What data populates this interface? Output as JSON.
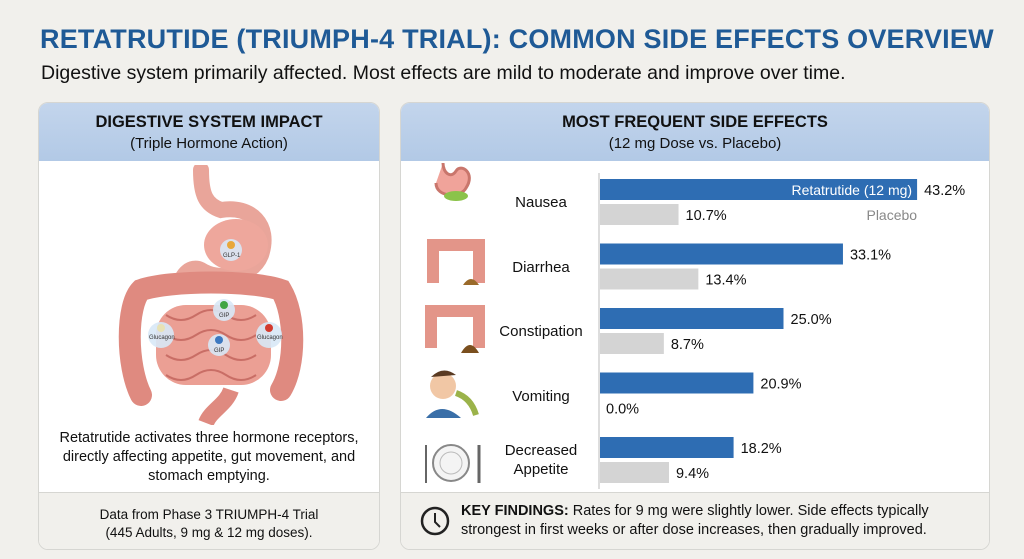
{
  "header": {
    "title": "RETATRUTIDE (TRIUMPH-4 TRIAL): COMMON SIDE EFFECTS OVERVIEW",
    "subtitle": "Digestive system primarily affected. Most effects are mild to moderate and improve over time."
  },
  "left_panel": {
    "title": "DIGESTIVE SYSTEM IMPACT",
    "subtitle": "(Triple Hormone Action)",
    "receptor_labels": [
      "GLP-1",
      "GIP",
      "GIP",
      "Glucagon",
      "Glucagon"
    ],
    "caption": "Retatrutide activates three hormone receptors, directly affecting appetite, gut movement, and stomach emptying.",
    "footer_line1": "Data from Phase 3 TRIUMPH-4 Trial",
    "footer_line2": "(445 Adults, 9 mg & 12 mg doses)."
  },
  "right_panel": {
    "title": "MOST FREQUENT SIDE EFFECTS",
    "subtitle": "(12 mg Dose vs. Placebo)",
    "key_findings_label": "KEY FINDINGS:",
    "key_findings_text": " Rates for 9 mg were slightly lower. Side effects typically strongest in first weeks or after dose increases, then gradually improved."
  },
  "icons": [
    "stomach-icon",
    "large-intestine-icon",
    "constipation-icon",
    "vomiting-person-icon",
    "plate-cutlery-icon",
    "clock-icon"
  ],
  "colors": {
    "title": "#1f5a96",
    "retatrutide": "#2e6db3",
    "placebo": "#d4d4d4",
    "header_bg": "#bcd0e8"
  },
  "chart_data": {
    "type": "bar",
    "orientation": "horizontal",
    "categories": [
      "Nausea",
      "Diarrhea",
      "Constipation",
      "Vomiting",
      "Decreased Appetite"
    ],
    "series": [
      {
        "name": "Retatrutide (12 mg)",
        "values": [
          43.2,
          33.1,
          25.0,
          20.9,
          18.2
        ],
        "labels": [
          "43.2%",
          "33.1%",
          "25.0%",
          "20.9%",
          "18.2%"
        ]
      },
      {
        "name": "Placebo",
        "values": [
          10.7,
          13.4,
          8.7,
          0.0,
          9.4
        ],
        "labels": [
          "10.7%",
          "13.4%",
          "8.7%",
          "0.0%",
          "9.4%"
        ]
      }
    ],
    "unit": "%",
    "xlim": [
      0,
      50
    ],
    "grid": false
  }
}
